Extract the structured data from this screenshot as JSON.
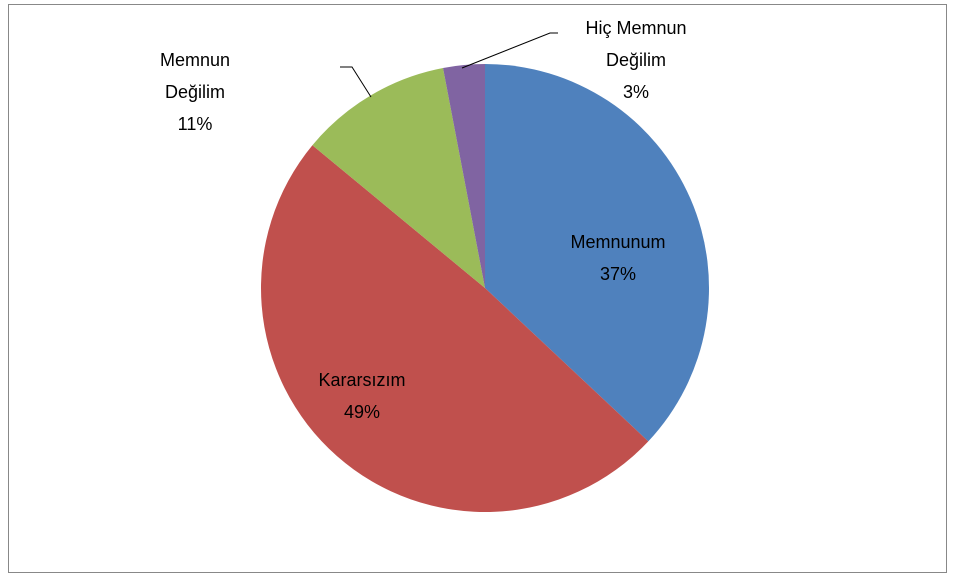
{
  "chart_data": {
    "type": "pie",
    "categories": [
      "Memnunum",
      "Kararsızım",
      "Memnun Değilim",
      "Hiç Memnun Değilim"
    ],
    "values": [
      37,
      49,
      11,
      3
    ],
    "value_labels": [
      "37%",
      "49%",
      "11%",
      "3%"
    ],
    "colors": [
      "#4f81bd",
      "#c0504d",
      "#9bbb59",
      "#8064a2"
    ]
  }
}
